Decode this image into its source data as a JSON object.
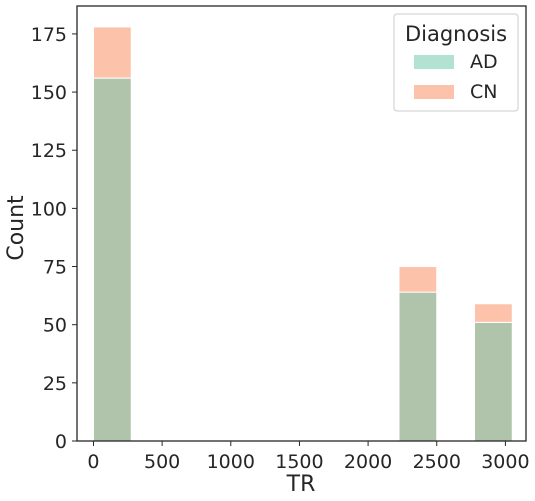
{
  "chart_data": {
    "type": "bar",
    "subtype": "stacked-histogram",
    "xlabel": "TR",
    "ylabel": "Count",
    "xlim": [
      -120,
      3150
    ],
    "ylim": [
      0,
      187
    ],
    "xticks": [
      0,
      500,
      1000,
      1500,
      2000,
      2500,
      3000
    ],
    "yticks": [
      0,
      25,
      50,
      75,
      100,
      125,
      150,
      175
    ],
    "bins": [
      {
        "x0": 0,
        "x1": 275
      },
      {
        "x0": 2225,
        "x1": 2500
      },
      {
        "x0": 2775,
        "x1": 3050
      }
    ],
    "series": [
      {
        "name": "AD",
        "values": [
          156,
          64,
          51
        ],
        "color": "#b0c4ac",
        "legend_color": "#b2e2d2"
      },
      {
        "name": "CN",
        "values": [
          22,
          11,
          8
        ],
        "color": "#fcc2aa",
        "legend_color": "#fcc2aa"
      }
    ],
    "legend": {
      "title": "Diagnosis",
      "placement": "top-right"
    },
    "grid": false
  }
}
